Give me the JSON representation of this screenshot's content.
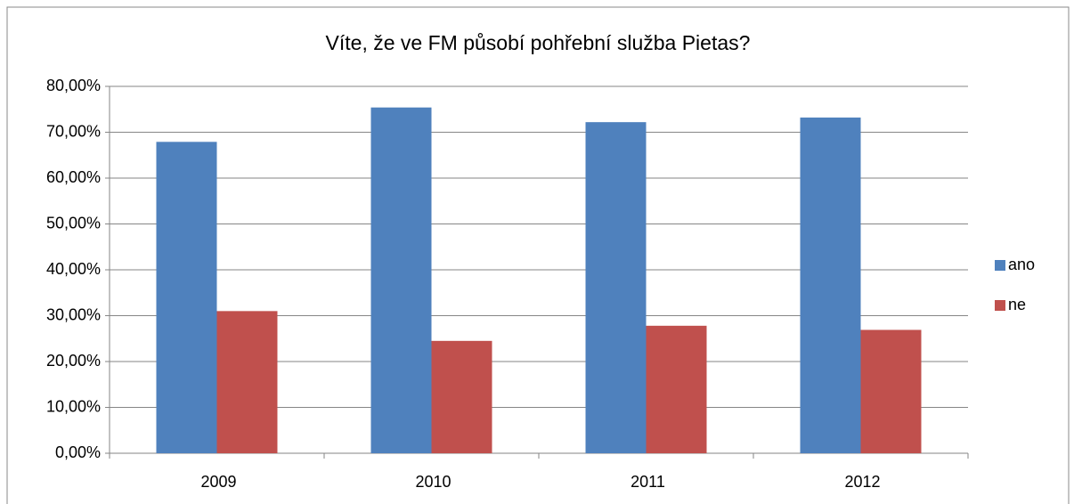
{
  "chart_data": {
    "type": "bar",
    "title": "Víte, že ve FM působí pohřební služba Pietas?",
    "categories": [
      "2009",
      "2010",
      "2011",
      "2012"
    ],
    "series": [
      {
        "name": "ano",
        "color": "#4f81bd",
        "values": [
          67.9,
          75.4,
          72.2,
          73.2
        ]
      },
      {
        "name": "ne",
        "color": "#c0504d",
        "values": [
          31.0,
          24.5,
          27.8,
          26.9
        ]
      }
    ],
    "ylim": [
      0,
      80
    ],
    "yticks": [
      {
        "value": 0,
        "label": "0,00%"
      },
      {
        "value": 10,
        "label": "10,00%"
      },
      {
        "value": 20,
        "label": "20,00%"
      },
      {
        "value": 30,
        "label": "30,00%"
      },
      {
        "value": 40,
        "label": "40,00%"
      },
      {
        "value": 50,
        "label": "50,00%"
      },
      {
        "value": 60,
        "label": "60,00%"
      },
      {
        "value": 70,
        "label": "70,00%"
      },
      {
        "value": 80,
        "label": "80,00%"
      }
    ],
    "grid": true,
    "legend": "right"
  }
}
